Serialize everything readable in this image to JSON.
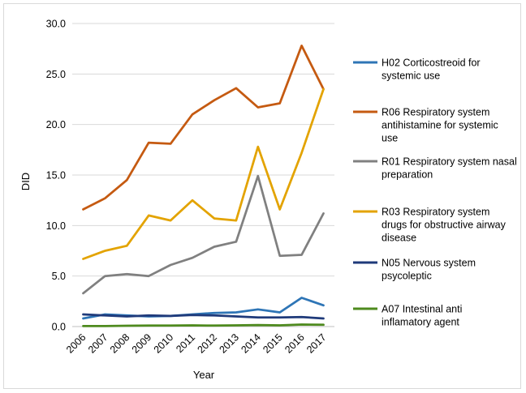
{
  "chart_data": {
    "type": "line",
    "xlabel": "Year",
    "ylabel": "DID",
    "ylim": [
      0,
      30
    ],
    "yticks": [
      "0.0",
      "5.0",
      "10.0",
      "15.0",
      "20.0",
      "25.0",
      "30.0"
    ],
    "grid": true,
    "legend_position": "right",
    "categories": [
      "2006",
      "2007",
      "2008",
      "2009",
      "2010",
      "2011",
      "2012",
      "2013",
      "2014",
      "2015",
      "2016",
      "2017"
    ],
    "series": [
      {
        "name": "H02 Corticostreoid for systemic use",
        "legend_lines": [
          "H02 Corticostreoid for",
          "systemic use"
        ],
        "color": "#2E75B6",
        "values": [
          0.8,
          1.2,
          1.1,
          1.0,
          1.05,
          1.2,
          1.35,
          1.4,
          1.7,
          1.4,
          2.85,
          2.1
        ]
      },
      {
        "name": "R06 Respiratory system antihistamine for systemic use",
        "legend_lines": [
          "R06 Respiratory system",
          "antihistamine for systemic",
          "use"
        ],
        "color": "#C55A11",
        "values": [
          11.6,
          12.7,
          14.5,
          18.2,
          18.1,
          21.0,
          22.4,
          23.6,
          21.7,
          22.1,
          27.8,
          23.5
        ]
      },
      {
        "name": "R01 Respiratory system nasal preparation",
        "legend_lines": [
          "R01 Respiratory system nasal",
          "preparation"
        ],
        "color": "#808080",
        "values": [
          3.3,
          5.0,
          5.2,
          5.0,
          6.1,
          6.8,
          7.9,
          8.4,
          14.9,
          7.0,
          7.1,
          11.2
        ]
      },
      {
        "name": "R03 Respiratory system drugs for obstructive airway disease",
        "legend_lines": [
          "R03 Respiratory system",
          "drugs for obstructive airway",
          "disease"
        ],
        "color": "#E3A300",
        "values": [
          6.7,
          7.5,
          8.0,
          11.0,
          10.5,
          12.5,
          10.7,
          10.5,
          17.8,
          11.6,
          17.2,
          23.5
        ]
      },
      {
        "name": "N05 Nervous system psycoleptic",
        "legend_lines": [
          "N05 Nervous system",
          "psycoleptic"
        ],
        "color": "#1F3A7A",
        "values": [
          1.2,
          1.1,
          1.0,
          1.1,
          1.05,
          1.15,
          1.1,
          1.0,
          0.9,
          0.9,
          0.95,
          0.8
        ]
      },
      {
        "name": "A07 Intestinal anti inflamatory agent",
        "legend_lines": [
          "A07 Intestinal anti",
          "inflamatory agent"
        ],
        "color": "#4E8A1E",
        "values": [
          0.05,
          0.05,
          0.08,
          0.1,
          0.1,
          0.12,
          0.1,
          0.12,
          0.15,
          0.12,
          0.2,
          0.18
        ]
      }
    ]
  }
}
